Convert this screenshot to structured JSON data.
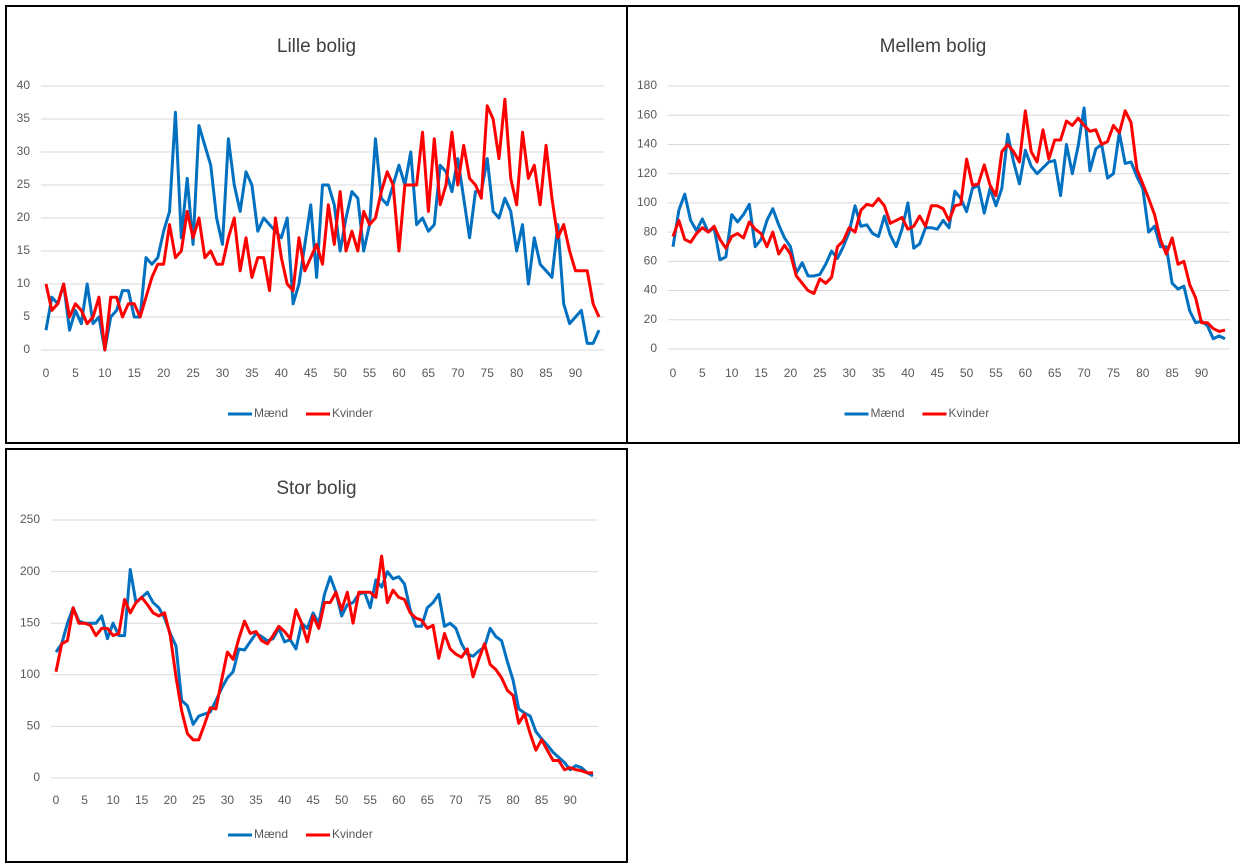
{
  "chart_data": [
    {
      "type": "line",
      "title": "Lille bolig",
      "x": [
        0,
        1,
        2,
        3,
        4,
        5,
        6,
        7,
        8,
        9,
        10,
        11,
        12,
        13,
        14,
        15,
        16,
        17,
        18,
        19,
        20,
        21,
        22,
        23,
        24,
        25,
        26,
        27,
        28,
        29,
        30,
        31,
        32,
        33,
        34,
        35,
        36,
        37,
        38,
        39,
        40,
        41,
        42,
        43,
        44,
        45,
        46,
        47,
        48,
        49,
        50,
        51,
        52,
        53,
        54,
        55,
        56,
        57,
        58,
        59,
        60,
        61,
        62,
        63,
        64,
        65,
        66,
        67,
        68,
        69,
        70,
        71,
        72,
        73,
        74,
        75,
        76,
        77,
        78,
        79,
        80,
        81,
        82,
        83,
        84,
        85,
        86,
        87,
        88,
        89,
        90,
        91,
        92,
        93,
        94
      ],
      "series": [
        {
          "name": "Mænd",
          "color": "#0070c0",
          "values": [
            3,
            8,
            7,
            10,
            3,
            6,
            4,
            10,
            4,
            5,
            0,
            5,
            6,
            9,
            9,
            5,
            5,
            14,
            13,
            14,
            18,
            21,
            36,
            17,
            26,
            16,
            34,
            31,
            28,
            20,
            16,
            32,
            25,
            21,
            27,
            25,
            18,
            20,
            19,
            18,
            17,
            20,
            7,
            10,
            16,
            22,
            11,
            25,
            25,
            22,
            15,
            20,
            24,
            23,
            15,
            19,
            32,
            23,
            22,
            25,
            28,
            25,
            30,
            19,
            20,
            18,
            19,
            28,
            27,
            24,
            29,
            23,
            17,
            24,
            24,
            29,
            21,
            20,
            23,
            21,
            15,
            19,
            10,
            17,
            13,
            12,
            11,
            19,
            7,
            4,
            5,
            6,
            1,
            1,
            3
          ]
        },
        {
          "name": "Kvinder",
          "color": "#ff0000",
          "values": [
            10,
            6,
            7,
            10,
            5,
            7,
            6,
            4,
            5,
            8,
            0,
            8,
            8,
            5,
            7,
            7,
            5,
            8,
            11,
            13,
            13,
            19,
            14,
            15,
            21,
            17,
            20,
            14,
            15,
            13,
            13,
            17,
            20,
            12,
            17,
            11,
            14,
            14,
            9,
            20,
            14,
            10,
            9,
            17,
            12,
            14,
            16,
            13,
            22,
            16,
            24,
            15,
            18,
            15,
            21,
            19,
            20,
            24,
            27,
            25,
            15,
            25,
            25,
            25,
            33,
            21,
            32,
            22,
            25,
            33,
            25,
            31,
            26,
            25,
            23,
            37,
            35,
            29,
            38,
            26,
            22,
            33,
            26,
            28,
            22,
            31,
            23,
            17,
            19,
            15,
            12,
            12,
            12,
            7,
            5
          ]
        }
      ],
      "xlim": [
        0,
        94
      ],
      "xticks": [
        0,
        5,
        10,
        15,
        20,
        25,
        30,
        35,
        40,
        45,
        50,
        55,
        60,
        65,
        70,
        75,
        80,
        85,
        90
      ],
      "ylim": [
        0,
        40
      ],
      "yticks": [
        0,
        5,
        10,
        15,
        20,
        25,
        30,
        35,
        40
      ],
      "grid": true,
      "legend": "bottom"
    },
    {
      "type": "line",
      "title": "Mellem bolig",
      "x": [
        0,
        1,
        2,
        3,
        4,
        5,
        6,
        7,
        8,
        9,
        10,
        11,
        12,
        13,
        14,
        15,
        16,
        17,
        18,
        19,
        20,
        21,
        22,
        23,
        24,
        25,
        26,
        27,
        28,
        29,
        30,
        31,
        32,
        33,
        34,
        35,
        36,
        37,
        38,
        39,
        40,
        41,
        42,
        43,
        44,
        45,
        46,
        47,
        48,
        49,
        50,
        51,
        52,
        53,
        54,
        55,
        56,
        57,
        58,
        59,
        60,
        61,
        62,
        63,
        64,
        65,
        66,
        67,
        68,
        69,
        70,
        71,
        72,
        73,
        74,
        75,
        76,
        77,
        78,
        79,
        80,
        81,
        82,
        83,
        84,
        85,
        86,
        87,
        88,
        89,
        90,
        91,
        92,
        93,
        94
      ],
      "series": [
        {
          "name": "Mænd",
          "color": "#0070c0",
          "values": [
            70,
            95,
            106,
            88,
            81,
            89,
            80,
            83,
            61,
            63,
            92,
            87,
            92,
            99,
            70,
            75,
            88,
            96,
            85,
            76,
            70,
            52,
            59,
            50,
            50,
            51,
            58,
            67,
            62,
            70,
            80,
            98,
            84,
            85,
            79,
            77,
            91,
            78,
            70,
            82,
            100,
            69,
            72,
            83,
            83,
            82,
            88,
            83,
            108,
            103,
            94,
            110,
            112,
            93,
            110,
            98,
            110,
            147,
            128,
            113,
            136,
            125,
            120,
            124,
            128,
            129,
            105,
            140,
            120,
            139,
            165,
            122,
            137,
            140,
            117,
            120,
            148,
            127,
            128,
            118,
            110,
            80,
            84,
            70,
            70,
            45,
            41,
            43,
            26,
            18,
            19,
            16,
            7,
            9,
            7
          ]
        },
        {
          "name": "Kvinder",
          "color": "#ff0000",
          "values": [
            77,
            88,
            75,
            73,
            79,
            83,
            80,
            84,
            75,
            69,
            77,
            79,
            76,
            87,
            82,
            79,
            70,
            80,
            65,
            71,
            65,
            50,
            45,
            40,
            38,
            48,
            45,
            49,
            70,
            74,
            83,
            80,
            95,
            99,
            98,
            103,
            98,
            86,
            88,
            90,
            82,
            84,
            91,
            84,
            98,
            98,
            96,
            88,
            98,
            99,
            130,
            112,
            113,
            126,
            112,
            105,
            135,
            140,
            135,
            128,
            163,
            135,
            128,
            150,
            130,
            143,
            143,
            156,
            153,
            158,
            153,
            149,
            150,
            140,
            142,
            153,
            148,
            163,
            155,
            123,
            113,
            103,
            92,
            75,
            65,
            76,
            58,
            60,
            44,
            35,
            18,
            18,
            14,
            12,
            13
          ]
        }
      ],
      "xlim": [
        0,
        94
      ],
      "xticks": [
        0,
        5,
        10,
        15,
        20,
        25,
        30,
        35,
        40,
        45,
        50,
        55,
        60,
        65,
        70,
        75,
        80,
        85,
        90
      ],
      "ylim": [
        0,
        180
      ],
      "yticks": [
        0,
        20,
        40,
        60,
        80,
        100,
        120,
        140,
        160,
        180
      ],
      "grid": true,
      "legend": "bottom"
    },
    {
      "type": "line",
      "title": "Stor bolig",
      "x": [
        0,
        1,
        2,
        3,
        4,
        5,
        6,
        7,
        8,
        9,
        10,
        11,
        12,
        13,
        14,
        15,
        16,
        17,
        18,
        19,
        20,
        21,
        22,
        23,
        24,
        25,
        26,
        27,
        28,
        29,
        30,
        31,
        32,
        33,
        34,
        35,
        36,
        37,
        38,
        39,
        40,
        41,
        42,
        43,
        44,
        45,
        46,
        47,
        48,
        49,
        50,
        51,
        52,
        53,
        54,
        55,
        56,
        57,
        58,
        59,
        60,
        61,
        62,
        63,
        64,
        65,
        66,
        67,
        68,
        69,
        70,
        71,
        72,
        73,
        74,
        75,
        76,
        77,
        78,
        79,
        80,
        81,
        82,
        83,
        84,
        85,
        86,
        87,
        88,
        89,
        90,
        91,
        92,
        93,
        94
      ],
      "series": [
        {
          "name": "Mænd",
          "color": "#0070c0",
          "values": [
            122,
            130,
            150,
            165,
            152,
            150,
            150,
            150,
            157,
            135,
            150,
            138,
            138,
            202,
            170,
            175,
            180,
            170,
            165,
            155,
            140,
            128,
            75,
            70,
            52,
            60,
            62,
            64,
            75,
            87,
            97,
            103,
            125,
            124,
            132,
            140,
            137,
            133,
            135,
            145,
            132,
            134,
            125,
            150,
            145,
            160,
            150,
            178,
            195,
            180,
            157,
            168,
            170,
            178,
            180,
            165,
            192,
            185,
            200,
            193,
            195,
            188,
            163,
            147,
            147,
            165,
            170,
            178,
            147,
            150,
            145,
            130,
            120,
            118,
            123,
            127,
            145,
            137,
            133,
            113,
            95,
            67,
            63,
            60,
            45,
            38,
            32,
            25,
            20,
            15,
            8,
            12,
            10,
            5,
            2
          ]
        },
        {
          "name": "Kvinder",
          "color": "#ff0000",
          "values": [
            103,
            130,
            133,
            165,
            150,
            150,
            148,
            138,
            145,
            145,
            138,
            140,
            173,
            160,
            170,
            175,
            168,
            160,
            157,
            160,
            138,
            98,
            65,
            43,
            37,
            37,
            52,
            68,
            67,
            95,
            122,
            115,
            135,
            152,
            140,
            142,
            133,
            130,
            138,
            147,
            142,
            135,
            163,
            150,
            132,
            157,
            145,
            170,
            170,
            180,
            163,
            180,
            150,
            180,
            180,
            180,
            175,
            215,
            170,
            182,
            175,
            173,
            160,
            155,
            153,
            145,
            148,
            116,
            140,
            125,
            120,
            117,
            125,
            98,
            115,
            130,
            110,
            105,
            97,
            85,
            80,
            53,
            62,
            43,
            27,
            37,
            27,
            17,
            17,
            8,
            10,
            8,
            7,
            5,
            5
          ]
        }
      ],
      "xlim": [
        0,
        94
      ],
      "xticks": [
        0,
        5,
        10,
        15,
        20,
        25,
        30,
        35,
        40,
        45,
        50,
        55,
        60,
        65,
        70,
        75,
        80,
        85,
        90
      ],
      "ylim": [
        0,
        250
      ],
      "yticks": [
        0,
        50,
        100,
        150,
        200,
        250
      ],
      "grid": true,
      "legend": "bottom"
    }
  ]
}
